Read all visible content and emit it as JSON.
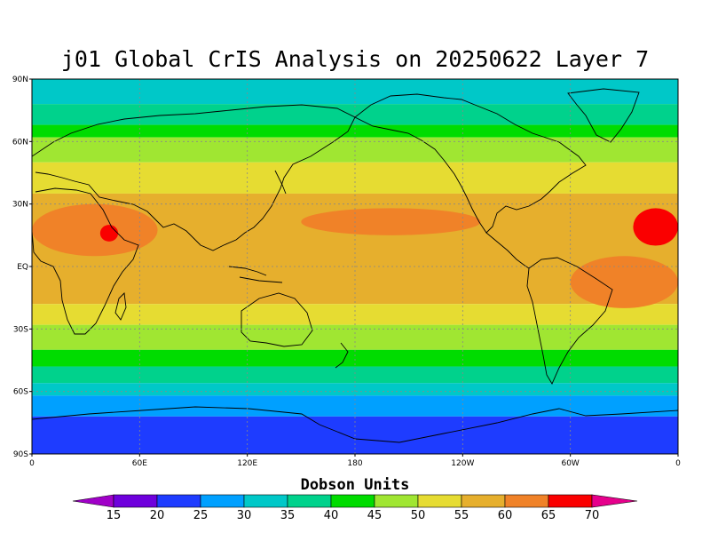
{
  "title": "j01 Global CrIS Analysis on 20250622 Layer 7",
  "map": {
    "lat_ticks": [
      "90N",
      "60N",
      "30N",
      "EQ",
      "30S",
      "60S",
      "90S"
    ],
    "lon_ticks": [
      "0",
      "60E",
      "120E",
      "180",
      "120W",
      "60W",
      "0"
    ],
    "grid": true
  },
  "colorbar": {
    "title": "Dobson Units",
    "levels": [
      15,
      20,
      25,
      30,
      35,
      40,
      45,
      50,
      55,
      60,
      65,
      70
    ],
    "labels": [
      "15",
      "20",
      "25",
      "30",
      "35",
      "40",
      "45",
      "50",
      "55",
      "60",
      "65",
      "70"
    ],
    "colors": [
      "#a000c8",
      "#6e00dc",
      "#1e3cff",
      "#00a0ff",
      "#00c8c8",
      "#00d28c",
      "#00dc00",
      "#a0e632",
      "#e6dc32",
      "#e6af2d",
      "#f08228",
      "#fa0000",
      "#e6008c"
    ]
  },
  "chart_data": {
    "type": "heatmap",
    "title": "j01 Global CrIS Analysis on 20250622 Layer 7",
    "xlabel": "",
    "ylabel": "",
    "xlim": [
      0,
      360
    ],
    "ylim": [
      -90,
      90
    ],
    "zlabel": "Dobson Units",
    "zlim": [
      15,
      70
    ],
    "zonal_bands": [
      {
        "lat_max": 90,
        "lat_min": 78,
        "value": 30
      },
      {
        "lat_max": 78,
        "lat_min": 68,
        "value": 35
      },
      {
        "lat_max": 68,
        "lat_min": 62,
        "value": 40
      },
      {
        "lat_max": 62,
        "lat_min": 50,
        "value": 45
      },
      {
        "lat_max": 50,
        "lat_min": 35,
        "value": 50
      },
      {
        "lat_max": 35,
        "lat_min": -18,
        "value": 55
      },
      {
        "lat_max": -18,
        "lat_min": -28,
        "value": 50
      },
      {
        "lat_max": -28,
        "lat_min": -40,
        "value": 45
      },
      {
        "lat_max": -40,
        "lat_min": -48,
        "value": 40
      },
      {
        "lat_max": -48,
        "lat_min": -56,
        "value": 35
      },
      {
        "lat_max": -56,
        "lat_min": -62,
        "value": 30
      },
      {
        "lat_max": -62,
        "lat_min": -72,
        "value": 25
      },
      {
        "lat_max": -72,
        "lat_min": -90,
        "value": 20
      }
    ],
    "regional_maxima": [
      {
        "region": "Saharan Africa / Arabia",
        "lon": [
          0,
          70
        ],
        "lat": [
          5,
          30
        ],
        "value": 60
      },
      {
        "region": "Red Sea",
        "lon": [
          38,
          48
        ],
        "lat": [
          12,
          20
        ],
        "value": 65
      },
      {
        "region": "West Africa (Atlantic edge)",
        "lon": [
          335,
          360
        ],
        "lat": [
          10,
          28
        ],
        "value": 65
      },
      {
        "region": "South Atlantic / Brazil",
        "lon": [
          300,
          360
        ],
        "lat": [
          -20,
          5
        ],
        "value": 60
      },
      {
        "region": "Central Pacific",
        "lon": [
          150,
          250
        ],
        "lat": [
          15,
          28
        ],
        "value": 60
      }
    ]
  }
}
